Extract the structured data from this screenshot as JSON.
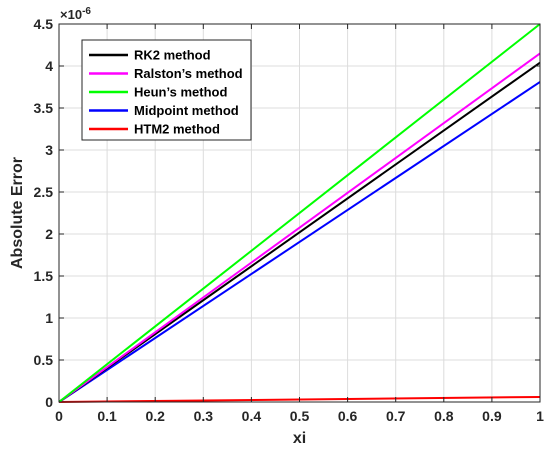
{
  "chart_data": {
    "type": "line",
    "xlabel": "xi",
    "ylabel": "Absolute Error",
    "y_exponent": {
      "base": "×10",
      "power": "-6"
    },
    "xlim": [
      0,
      1
    ],
    "ylim": [
      0,
      4.5
    ],
    "xticks": [
      "0",
      "0.1",
      "0.2",
      "0.3",
      "0.4",
      "0.5",
      "0.6",
      "0.7",
      "0.8",
      "0.9",
      "1"
    ],
    "yticks": [
      "0",
      "0.5",
      "1",
      "1.5",
      "2",
      "2.5",
      "3",
      "3.5",
      "4",
      "4.5"
    ],
    "grid": true,
    "legend_position": "top-left",
    "x": [
      0,
      1
    ],
    "series": [
      {
        "name": "RK2 method",
        "color": "#000000",
        "values": [
          0,
          4.04
        ]
      },
      {
        "name": "Ralston’s method",
        "color": "#ff00ff",
        "values": [
          0,
          4.15
        ]
      },
      {
        "name": "Heun’s method",
        "color": "#00ff00",
        "values": [
          0,
          4.5
        ]
      },
      {
        "name": "Midpoint method",
        "color": "#0000ff",
        "values": [
          0,
          3.81
        ]
      },
      {
        "name": "HTM2 method",
        "color": "#ff0000",
        "values": [
          0,
          0.06
        ]
      }
    ]
  }
}
